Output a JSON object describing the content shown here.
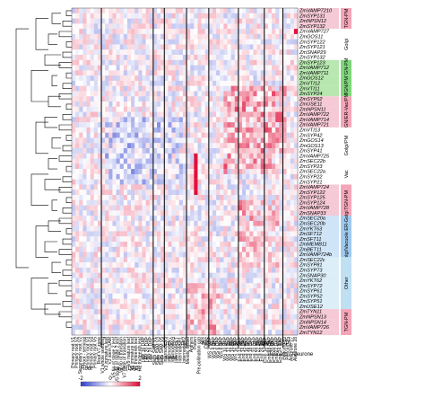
{
  "chart_data": {
    "type": "heatmap",
    "genes": [
      "ZmVAMP7210",
      "ZmSYP131",
      "ZmNPSN12",
      "ZmSYP132",
      "ZmVAMP727",
      "ZmGOS11",
      "ZmSYP122",
      "ZmSYP121",
      "ZmSNAP29",
      "ZmSYP132",
      "ZmSYP123",
      "ZmVAMP712",
      "ZmVAMP711",
      "ZmGOS12",
      "ZmVTI12",
      "ZmVTI11",
      "ZmSYP24",
      "ZmSYP62",
      "ZmUSE11",
      "ZmNPSN11",
      "ZmVAMP722",
      "ZmVAMP714",
      "ZmVAMP721",
      "ZmVTI13",
      "ZmSYP42",
      "ZmGOS14",
      "ZmGOS13",
      "ZmSYP41",
      "ZmVAMP725",
      "ZmSEC22b",
      "ZmSYP23",
      "ZmSEC22a",
      "ZmSYP22",
      "ZmSYP21",
      "ZmVAMP724",
      "ZmSYP122",
      "ZmSYP125",
      "ZmSYP124",
      "ZmVAMP728",
      "ZmSNAP33",
      "ZmSEC20a",
      "ZmSEC20b",
      "ZmYKT63",
      "ZmSFT12",
      "ZmSFT11",
      "ZmMEMB11",
      "ZmBET11",
      "ZmVAMP724b",
      "ZmSEC22c",
      "ZmSYP81",
      "ZmSYP73",
      "ZmSNAP30",
      "ZmYKT62",
      "ZmSYP72",
      "ZmSYP61",
      "ZmSYP52",
      "ZmSYP51",
      "ZmUSE12",
      "ZmTYN11",
      "ZmNPSN13",
      "ZmNPSN14",
      "ZmVAMP726",
      "ZmTYN12"
    ],
    "samples": [
      "Primary root V1",
      "Primary root V2",
      "Secondary root V2",
      "Root - seminal",
      "Primary root V3",
      "Primary root V4",
      "Primary root V5",
      "Root V7 zone",
      "V1 whole seedling",
      "V3 immature leaf",
      "V3 stem SAM",
      "V5 tip of stage 2 leaf",
      "V5 base of stage 2 leaf",
      "V7 tip of transition",
      "V7 base of transition",
      "V9 mature leaf",
      "V9 immature leaf",
      "VT thirteenth leaf",
      "R2 thirteenth leaf",
      "Leaf 16 DAP",
      "Leaf 20 DAP",
      "Leaf 24 DAP",
      "Stem SAM V1",
      "Stem SAM V3",
      "Stem SAM V5",
      "Internode V5",
      "Internode V7",
      "Internode V9",
      "Internode VT",
      "Internode R1",
      "Internode R2",
      "Meiotic tassel",
      "Anthers",
      "Pollen",
      "Pre-pollination cob",
      "Silk",
      "Ovule",
      "WS 2 DAP",
      "WS 4 DAP",
      "WS 6 DAP",
      "WS 8 DAP",
      "WS 10 DAP",
      "WS 12 DAP",
      "WS 14 DAP",
      "WS 16 DAP",
      "End 12 DAP",
      "End 14 DAP",
      "End 16 DAP",
      "End 18 DAP",
      "End 20 DAP",
      "End 22 DAP",
      "End 24 DAP",
      "Emb 16 DAP",
      "Emb 18 DAP",
      "Emb 20 DAP",
      "Emb 22 DAP",
      "Emb 24 DAP",
      "Pericarp 20",
      "Pericarp 25",
      "Aleurone 27",
      "Aleurone 28"
    ],
    "sample_groups": [
      "Root",
      "Leaf (DAP)",
      "Stem and SAM",
      "Internode",
      "Whole seed (DAP)",
      "Endosperm (DAP)",
      "Embryo (DAP)",
      "Pericarp / Aleurone"
    ],
    "row_groups": [
      {
        "label": "TGN-PM",
        "color": "#f4a6b8"
      },
      {
        "label": "Golgi",
        "color": "#ffffff"
      },
      {
        "label": "TGN-PM",
        "color": "#7fd67a"
      },
      {
        "label": "TGN/PM",
        "color": "#7fd67a"
      },
      {
        "label": "TGN/ER-Vac/PM",
        "color": "#f4a6b8"
      },
      {
        "label": "Golgi/PM",
        "color": "#ffffff"
      },
      {
        "label": "Vac",
        "color": "#ffffff"
      },
      {
        "label": "TGN-PM",
        "color": "#f4a6b8"
      },
      {
        "label": "Golgi/Vacuole ER-Golgi",
        "color": "#9ec9ec"
      },
      {
        "label": "Other",
        "color": "#bfe0f2"
      },
      {
        "label": "TGN-PM",
        "color": "#f4a6b8"
      }
    ],
    "color_scale": {
      "min": -2,
      "mid": 0,
      "max": 2,
      "low_color": "#2f3fd0",
      "mid_color": "#ffffff",
      "high_color": "#e0103a"
    },
    "scale_labels": [
      "-2",
      "0",
      "2"
    ]
  },
  "gene_label_colors": [
    "#f6c9d6",
    "#f6c9d6",
    "#f6c9d6",
    "#f6c9d6",
    "#ffffff",
    "#ffffff",
    "#ffffff",
    "#ffffff",
    "#ffffff",
    "#ffffff",
    "#b8e8b0",
    "#b8e8b0",
    "#b8e8b0",
    "#b8e8b0",
    "#b8e8b0",
    "#b8e8b0",
    "#b8e8b0",
    "#f6c9d6",
    "#f6c9d6",
    "#f6c9d6",
    "#f6c9d6",
    "#f6c9d6",
    "#f6c9d6",
    "#ffffff",
    "#ffffff",
    "#ffffff",
    "#ffffff",
    "#ffffff",
    "#ffffff",
    "#ffffff",
    "#ffffff",
    "#ffffff",
    "#ffffff",
    "#ffffff",
    "#f6c9d6",
    "#f6c9d6",
    "#f6c9d6",
    "#f6c9d6",
    "#f6c9d6",
    "#f6c9d6",
    "#cfe4f7",
    "#cfe4f7",
    "#cfe4f7",
    "#cfe4f7",
    "#cfe4f7",
    "#cfe4f7",
    "#cfe4f7",
    "#cfe4f7",
    "#dceef8",
    "#dceef8",
    "#dceef8",
    "#dceef8",
    "#dceef8",
    "#dceef8",
    "#dceef8",
    "#dceef8",
    "#dceef8",
    "#dceef8",
    "#f6c9d6",
    "#f6c9d6",
    "#f6c9d6",
    "#f6c9d6",
    "#f6c9d6"
  ]
}
